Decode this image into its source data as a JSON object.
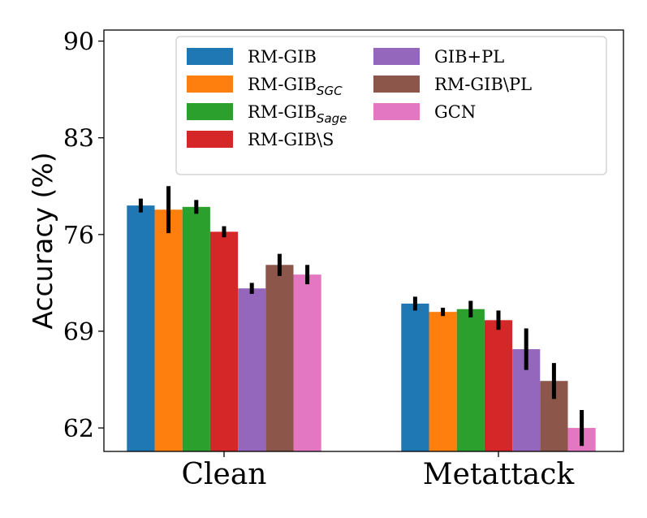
{
  "chart_data": {
    "type": "bar",
    "title": "",
    "xlabel": "",
    "ylabel": "Accuracy (%)",
    "ylim": [
      60.3,
      90.8
    ],
    "yticks": [
      62,
      69,
      76,
      83,
      90
    ],
    "categories": [
      "Clean",
      "Metattack"
    ],
    "legend_position": "top-right",
    "series": [
      {
        "name": "RM-GIB",
        "label_main": "RM-GIB",
        "label_sub": "",
        "color": "#1f77b4",
        "values": [
          78.1,
          71.0
        ],
        "errors": [
          0.5,
          0.5
        ]
      },
      {
        "name": "RM-GIB_SGC",
        "label_main": "RM-GIB",
        "label_sub": "SGC",
        "color": "#ff7f0e",
        "values": [
          77.8,
          70.4
        ],
        "errors": [
          1.7,
          0.3
        ]
      },
      {
        "name": "RM-GIB_Sage",
        "label_main": "RM-GIB",
        "label_sub": "Sage",
        "color": "#2ca02c",
        "values": [
          78.0,
          70.6
        ],
        "errors": [
          0.5,
          0.6
        ]
      },
      {
        "name": "RM-GIB\\S",
        "label_main": "RM-GIB\\S",
        "label_sub": "",
        "color": "#d62728",
        "values": [
          76.2,
          69.8
        ],
        "errors": [
          0.4,
          0.7
        ]
      },
      {
        "name": "GIB+PL",
        "label_main": "GIB+PL",
        "label_sub": "",
        "color": "#9467bd",
        "values": [
          72.1,
          67.7
        ],
        "errors": [
          0.4,
          1.5
        ]
      },
      {
        "name": "RM-GIB\\PL",
        "label_main": "RM-GIB\\PL",
        "label_sub": "",
        "color": "#8c564b",
        "values": [
          73.8,
          65.4
        ],
        "errors": [
          0.8,
          1.3
        ]
      },
      {
        "name": "GCN",
        "label_main": "GCN",
        "label_sub": "",
        "color": "#e377c2",
        "values": [
          73.1,
          62.0
        ],
        "errors": [
          0.7,
          1.3
        ]
      }
    ]
  }
}
